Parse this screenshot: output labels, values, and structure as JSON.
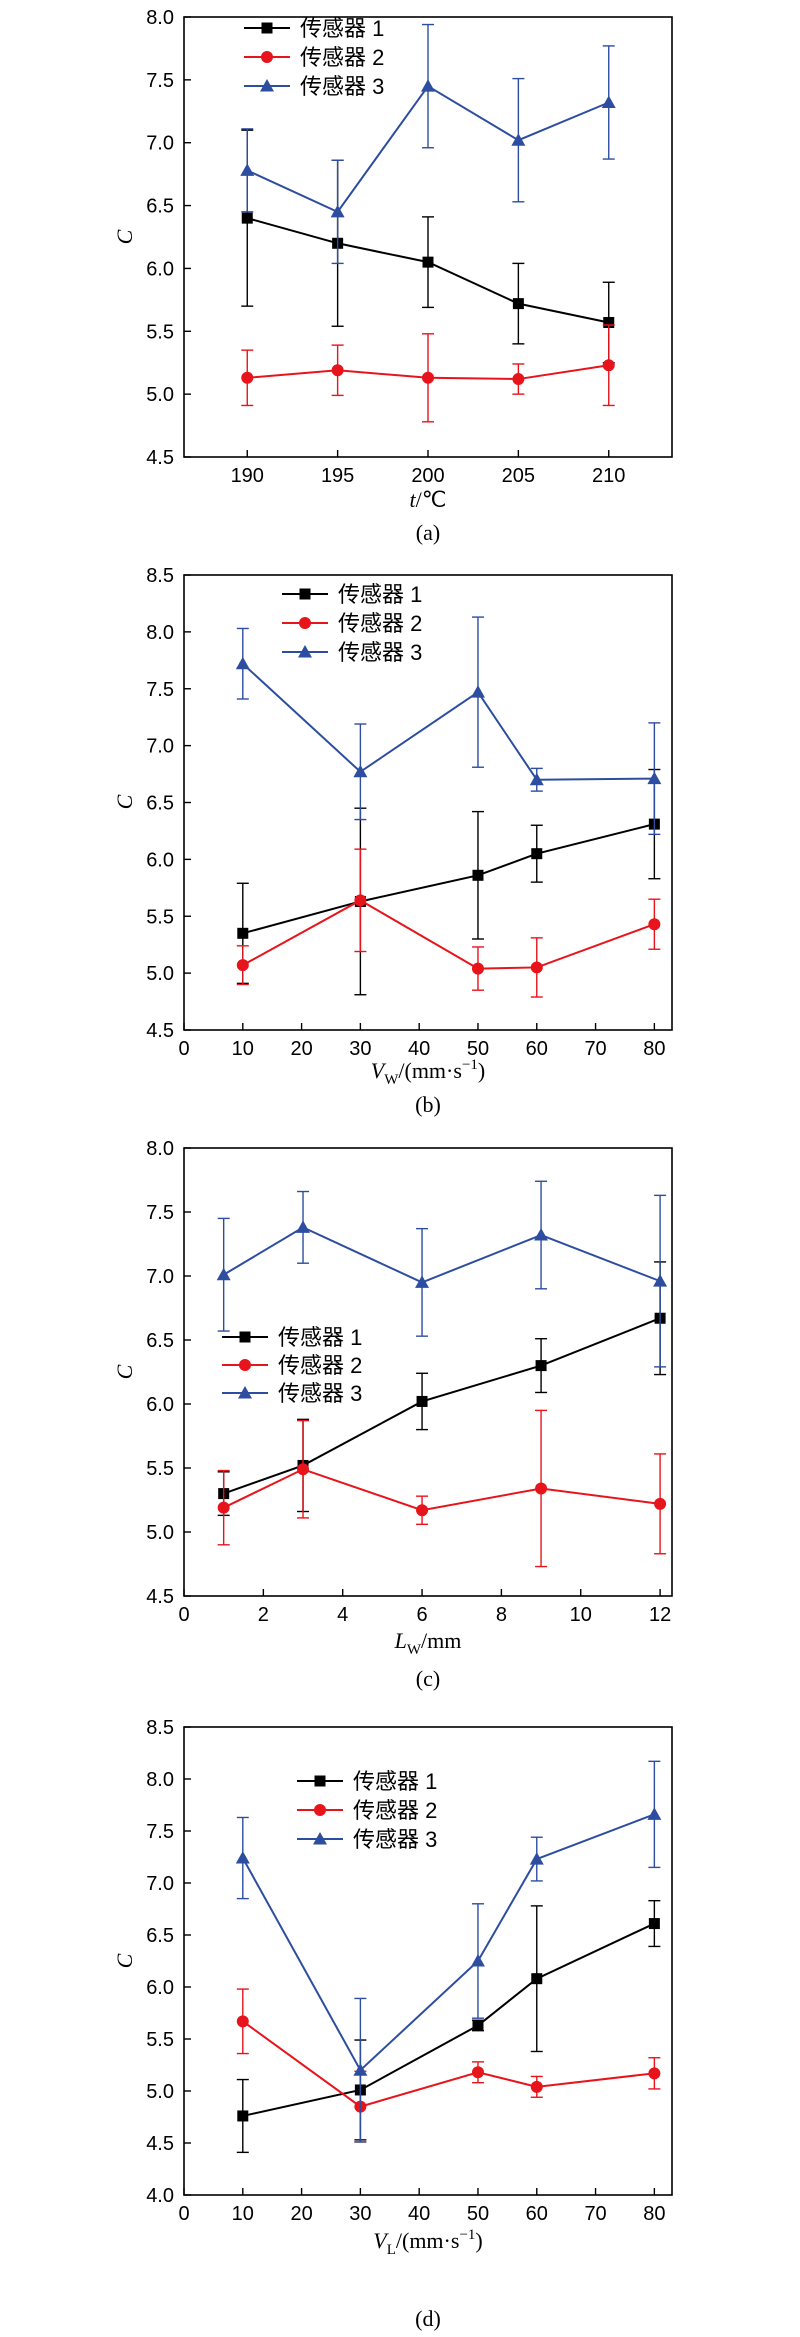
{
  "chart_data": [
    {
      "type": "line",
      "caption": "(a)",
      "xlabel": {
        "main": "t",
        "unit": "/℃"
      },
      "ylabel": "C",
      "x": [
        190,
        195,
        200,
        205,
        210
      ],
      "xlim": [
        186.5,
        213.5
      ],
      "xticks": [
        190,
        195,
        200,
        205,
        210
      ],
      "ylim": [
        4.5,
        8.0
      ],
      "yticks": [
        "4.5",
        "5.0",
        "5.5",
        "6.0",
        "6.5",
        "7.0",
        "7.5",
        "8.0"
      ],
      "legend_position": "top-left",
      "series": [
        {
          "name": "传感器 1",
          "color": "#000000",
          "marker": "square",
          "values": [
            6.4,
            6.2,
            6.05,
            5.72,
            5.57
          ],
          "errors": [
            0.7,
            0.66,
            0.36,
            0.32,
            0.32
          ]
        },
        {
          "name": "传感器 2",
          "color": "#e8141c",
          "marker": "circle",
          "values": [
            5.13,
            5.19,
            5.13,
            5.12,
            5.23
          ],
          "errors": [
            0.22,
            0.2,
            0.35,
            0.12,
            0.32
          ]
        },
        {
          "name": "传感器 3",
          "color": "#2d4ea0",
          "marker": "triangle",
          "values": [
            6.78,
            6.45,
            7.45,
            7.02,
            7.32
          ],
          "errors": [
            0.33,
            0.41,
            0.49,
            0.49,
            0.45
          ]
        }
      ]
    },
    {
      "type": "line",
      "caption": "(b)",
      "xlabel": {
        "main": "V",
        "sub": "W",
        "unit": "/(mm·s",
        "sup": "−1",
        "close": ")"
      },
      "ylabel": "C",
      "x": [
        10,
        30,
        50,
        60,
        80
      ],
      "xlim": [
        0,
        83
      ],
      "xticks": [
        0,
        10,
        20,
        30,
        40,
        50,
        60,
        70,
        80
      ],
      "ylim": [
        4.5,
        8.5
      ],
      "yticks": [
        "4.5",
        "5.0",
        "5.5",
        "6.0",
        "6.5",
        "7.0",
        "7.5",
        "8.0",
        "8.5"
      ],
      "legend_position": "top-center",
      "series": [
        {
          "name": "传感器 1",
          "color": "#000000",
          "marker": "square",
          "values": [
            5.35,
            5.63,
            5.86,
            6.05,
            6.31
          ],
          "errors": [
            0.44,
            0.82,
            0.56,
            0.25,
            0.48
          ]
        },
        {
          "name": "传感器 2",
          "color": "#e8141c",
          "marker": "circle",
          "values": [
            5.07,
            5.64,
            5.04,
            5.05,
            5.43
          ],
          "errors": [
            0.17,
            0.45,
            0.19,
            0.26,
            0.22
          ]
        },
        {
          "name": "传感器 3",
          "color": "#2d4ea0",
          "marker": "triangle",
          "values": [
            7.72,
            6.77,
            7.47,
            6.7,
            6.71
          ],
          "errors": [
            0.31,
            0.42,
            0.66,
            0.1,
            0.49
          ]
        }
      ]
    },
    {
      "type": "line",
      "caption": "(c)",
      "xlabel": {
        "main": "L",
        "sub": "W",
        "unit": "/mm"
      },
      "ylabel": "C",
      "x": [
        1,
        3,
        6,
        9,
        12
      ],
      "xlim": [
        0,
        12.3
      ],
      "xticks": [
        0,
        2,
        4,
        6,
        8,
        10,
        12
      ],
      "ylim": [
        4.5,
        8.0
      ],
      "yticks": [
        "4.5",
        "5.0",
        "5.5",
        "6.0",
        "6.5",
        "7.0",
        "7.5",
        "8.0"
      ],
      "legend_position": "center-left",
      "series": [
        {
          "name": "传感器 1",
          "color": "#000000",
          "marker": "square",
          "values": [
            5.3,
            5.52,
            6.02,
            6.3,
            6.67
          ],
          "errors": [
            0.17,
            0.36,
            0.22,
            0.21,
            0.44
          ]
        },
        {
          "name": "传感器 2",
          "color": "#e8141c",
          "marker": "circle",
          "values": [
            5.19,
            5.49,
            5.17,
            5.34,
            5.22
          ],
          "errors": [
            0.29,
            0.38,
            0.11,
            0.61,
            0.39
          ]
        },
        {
          "name": "传感器 3",
          "color": "#2d4ea0",
          "marker": "triangle",
          "values": [
            7.01,
            7.38,
            6.95,
            7.32,
            6.96
          ],
          "errors": [
            0.44,
            0.28,
            0.42,
            0.42,
            0.67
          ]
        }
      ]
    },
    {
      "type": "line",
      "caption": "(d)",
      "xlabel": {
        "main": "V",
        "sub": "L",
        "unit": "/(mm·s",
        "sup": "−1",
        "close": ")"
      },
      "ylabel": "C",
      "x": [
        10,
        30,
        50,
        60,
        80
      ],
      "xlim": [
        0,
        83
      ],
      "xticks": [
        0,
        10,
        20,
        30,
        40,
        50,
        60,
        70,
        80
      ],
      "ylim": [
        4.0,
        8.5
      ],
      "yticks": [
        "4.0",
        "4.5",
        "5.0",
        "5.5",
        "6.0",
        "6.5",
        "7.0",
        "7.5",
        "8.0",
        "8.5"
      ],
      "legend_position": "top-center",
      "series": [
        {
          "name": "传感器 1",
          "color": "#000000",
          "marker": "square",
          "values": [
            4.76,
            5.01,
            5.63,
            6.08,
            6.61
          ],
          "errors": [
            0.35,
            0.48,
            0.05,
            0.7,
            0.22
          ]
        },
        {
          "name": "传感器 2",
          "color": "#e8141c",
          "marker": "circle",
          "values": [
            5.67,
            4.85,
            5.18,
            5.04,
            5.17
          ],
          "errors": [
            0.31,
            0.34,
            0.1,
            0.1,
            0.15
          ]
        },
        {
          "name": "传感器 3",
          "color": "#2d4ea0",
          "marker": "triangle",
          "values": [
            7.24,
            5.2,
            6.25,
            7.23,
            7.66
          ],
          "errors": [
            0.39,
            0.69,
            0.55,
            0.21,
            0.51
          ]
        }
      ]
    }
  ]
}
